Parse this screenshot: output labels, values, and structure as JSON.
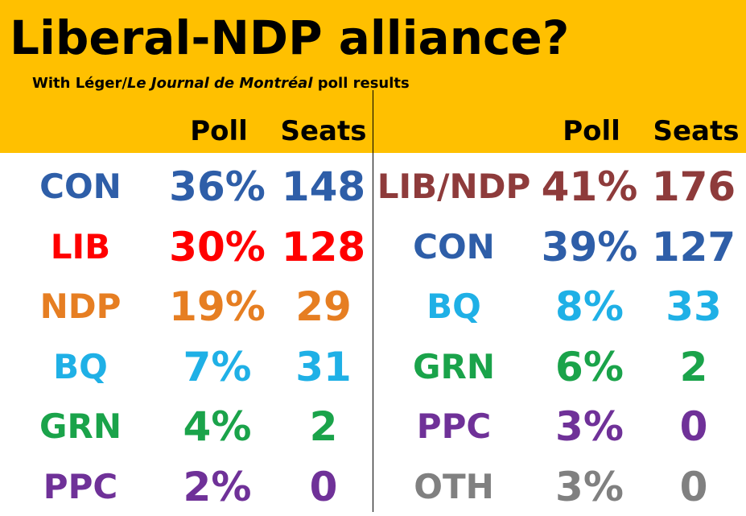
{
  "title": "Liberal-NDP alliance?",
  "subtitle": {
    "prefix": "With Léger/",
    "italic": "Le Journal de Montréal",
    "suffix": " poll results"
  },
  "headers": {
    "poll": "Poll",
    "seats": "Seats"
  },
  "chart_data": [
    {
      "type": "table",
      "columns": [
        "Poll",
        "Seats"
      ],
      "rows": [
        {
          "party": "CON",
          "poll": "36%",
          "seats": "148",
          "color": "#2E5EA8"
        },
        {
          "party": "LIB",
          "poll": "30%",
          "seats": "128",
          "color": "#FF0000"
        },
        {
          "party": "NDP",
          "poll": "19%",
          "seats": "29",
          "color": "#E67E22"
        },
        {
          "party": "BQ",
          "poll": "7%",
          "seats": "31",
          "color": "#1FB0E6"
        },
        {
          "party": "GRN",
          "poll": "4%",
          "seats": "2",
          "color": "#1AA34A"
        },
        {
          "party": "PPC",
          "poll": "2%",
          "seats": "0",
          "color": "#6F3198"
        }
      ]
    },
    {
      "type": "table",
      "columns": [
        "Poll",
        "Seats"
      ],
      "rows": [
        {
          "party": "LIB/NDP",
          "poll": "41%",
          "seats": "176",
          "color": "#8E3B3B"
        },
        {
          "party": "CON",
          "poll": "39%",
          "seats": "127",
          "color": "#2E5EA8"
        },
        {
          "party": "BQ",
          "poll": "8%",
          "seats": "33",
          "color": "#1FB0E6"
        },
        {
          "party": "GRN",
          "poll": "6%",
          "seats": "2",
          "color": "#1AA34A"
        },
        {
          "party": "PPC",
          "poll": "3%",
          "seats": "0",
          "color": "#6F3198"
        },
        {
          "party": "OTH",
          "poll": "3%",
          "seats": "0",
          "color": "#808080"
        }
      ]
    }
  ]
}
